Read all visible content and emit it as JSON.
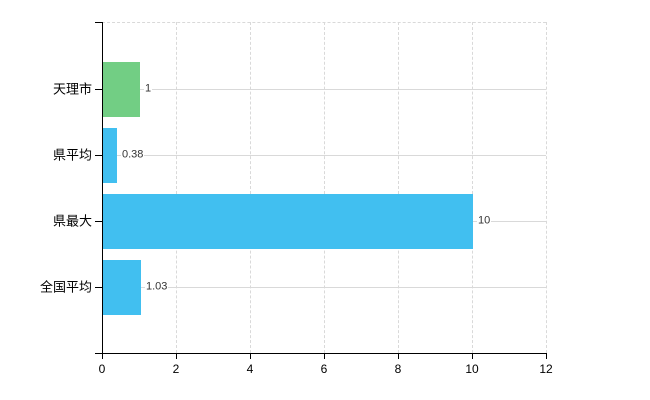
{
  "chart_data": {
    "type": "bar",
    "orientation": "horizontal",
    "title": "",
    "xlabel": "",
    "ylabel": "",
    "categories": [
      "天理市",
      "県平均",
      "県最大",
      "全国平均"
    ],
    "values": [
      1,
      0.38,
      10,
      1.03
    ],
    "value_labels": [
      "1",
      "0.38",
      "10",
      "1.03"
    ],
    "bar_colors": [
      "#72ce84",
      "#41bff0",
      "#41bff0",
      "#41bff0"
    ],
    "xlim": [
      0,
      12
    ],
    "x_ticks": [
      0,
      2,
      4,
      6,
      8,
      10,
      12
    ],
    "x_tick_labels": [
      "0",
      "2",
      "4",
      "6",
      "8",
      "10",
      "12"
    ],
    "grid": "on",
    "legend_position": "none"
  },
  "colors": {
    "bar_green": "#72ce84",
    "bar_blue": "#41bff0",
    "gridline": "#d9d9d9",
    "axis": "#000000",
    "category_text": "#000000",
    "value_text": "#333333",
    "background": "#ffffff"
  }
}
